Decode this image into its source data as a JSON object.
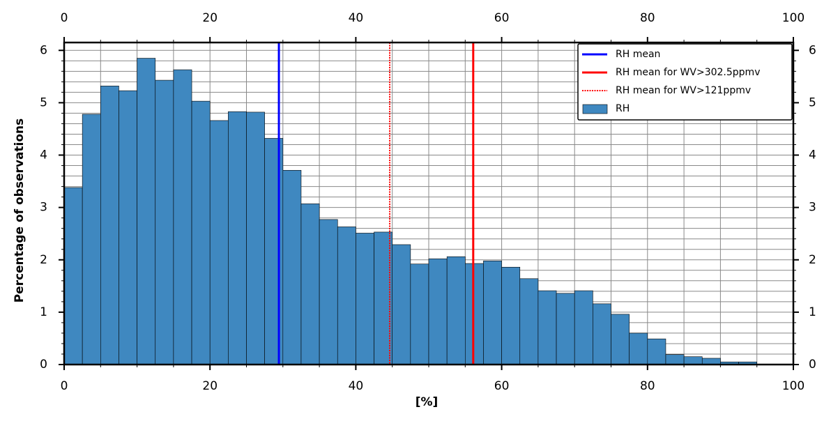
{
  "chart_data": {
    "type": "histogram",
    "xlabel": "[%]",
    "ylabel": "Percentage of observations",
    "bins": [
      0,
      2.5,
      5,
      7.5,
      10,
      12.5,
      15,
      17.5,
      20,
      22.5,
      25,
      27.5,
      30,
      32.5,
      35,
      37.5,
      40,
      42.5,
      45,
      47.5,
      50,
      52.5,
      55,
      57.5,
      60,
      62.5,
      65,
      67.5,
      70,
      72.5,
      75,
      77.5,
      80,
      82.5,
      85,
      87.5,
      90,
      92.5,
      95
    ],
    "series": [
      {
        "name": "RH",
        "color": "#3f88c0",
        "values": [
          3.38,
          4.78,
          5.32,
          5.23,
          5.85,
          5.43,
          5.63,
          5.03,
          4.66,
          4.83,
          4.82,
          4.32,
          3.71,
          3.07,
          2.77,
          2.63,
          2.51,
          2.53,
          2.29,
          1.92,
          2.02,
          2.06,
          1.93,
          1.98,
          1.86,
          1.64,
          1.41,
          1.36,
          1.41,
          1.16,
          0.96,
          0.6,
          0.49,
          0.19,
          0.15,
          0.12,
          0.05,
          0.05
        ]
      }
    ],
    "vlines": [
      {
        "name": "RH mean",
        "x": 29.45,
        "color": "#0000ff",
        "style": "solid"
      },
      {
        "name": "RH mean for WV>302.5ppmv",
        "x": 56.1,
        "color": "#ff0000",
        "style": "solid"
      },
      {
        "name": "RH mean for WV>121ppmv",
        "x": 44.65,
        "color": "#ff0000",
        "style": "dotted"
      }
    ],
    "xlim": [
      0,
      100
    ],
    "ylim": [
      0,
      6.15
    ],
    "xticks": [
      0,
      20,
      40,
      60,
      80,
      100
    ],
    "yticks": [
      0,
      1,
      2,
      3,
      4,
      5,
      6
    ],
    "xgrid": [
      0,
      5,
      10,
      15,
      20,
      25,
      30,
      35,
      40,
      45,
      50,
      55,
      60,
      65,
      70,
      75,
      80,
      85,
      90,
      95,
      100
    ],
    "ygrid": [
      0.2,
      0.4,
      0.6,
      0.8,
      1,
      1.2,
      1.4,
      1.6,
      1.8,
      2,
      2.2,
      2.4,
      2.6,
      2.8,
      3,
      3.2,
      3.4,
      3.6,
      3.8,
      4,
      4.2,
      4.4,
      4.6,
      4.8,
      5,
      5.2,
      5.4,
      5.6,
      5.8,
      6
    ],
    "grid": true,
    "legend": "upper right"
  }
}
